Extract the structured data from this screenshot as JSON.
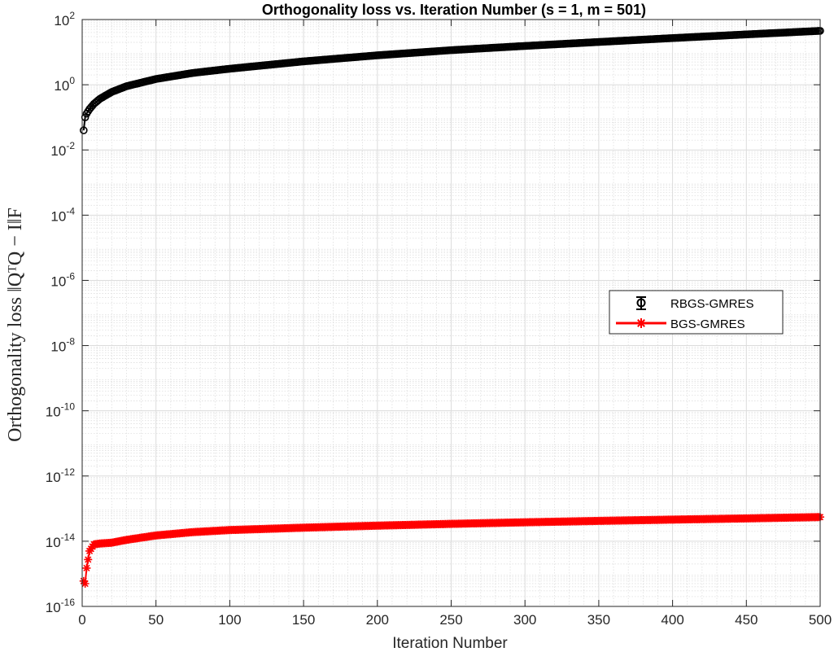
{
  "chart_data": {
    "type": "line",
    "title": "Orthogonality loss vs. Iteration Number (s = 1, m = 501)",
    "xlabel": "Iteration Number",
    "ylabel": "Orthogonality loss ‖QᵀQ − I‖F",
    "xlim": [
      0,
      500
    ],
    "ylim": [
      1e-16,
      100
    ],
    "yscale": "log",
    "grid": true,
    "minor_grid": true,
    "legend_position": "right",
    "x_ticks": [
      0,
      50,
      100,
      150,
      200,
      250,
      300,
      350,
      400,
      450,
      500
    ],
    "y_ticks": [
      {
        "base": "10",
        "exp": "2",
        "value": 100
      },
      {
        "base": "10",
        "exp": "0",
        "value": 1
      },
      {
        "base": "10",
        "exp": "-2",
        "value": 0.01
      },
      {
        "base": "10",
        "exp": "-4",
        "value": 0.0001
      },
      {
        "base": "10",
        "exp": "-6",
        "value": 1e-06
      },
      {
        "base": "10",
        "exp": "-8",
        "value": 1e-08
      },
      {
        "base": "10",
        "exp": "-10",
        "value": 1e-10
      },
      {
        "base": "10",
        "exp": "-12",
        "value": 1e-12
      },
      {
        "base": "10",
        "exp": "-14",
        "value": 1e-14
      },
      {
        "base": "10",
        "exp": "-16",
        "value": 1e-16
      }
    ],
    "series": [
      {
        "name": "RBGS-GMRES",
        "color": "#000000",
        "marker": "circle",
        "points": [
          [
            1,
            0.04
          ],
          [
            2,
            0.1
          ],
          [
            3,
            0.13
          ],
          [
            5,
            0.18
          ],
          [
            8,
            0.26
          ],
          [
            12,
            0.37
          ],
          [
            20,
            0.6
          ],
          [
            30,
            0.9
          ],
          [
            50,
            1.5
          ],
          [
            75,
            2.3
          ],
          [
            100,
            3.1
          ],
          [
            150,
            5.2
          ],
          [
            200,
            8.0
          ],
          [
            250,
            11.5
          ],
          [
            300,
            15.5
          ],
          [
            350,
            20.5
          ],
          [
            400,
            27.0
          ],
          [
            450,
            35.0
          ],
          [
            500,
            45.0
          ]
        ]
      },
      {
        "name": "BGS-GMRES",
        "color": "#ff0000",
        "marker": "asterisk",
        "points": [
          [
            1,
            6e-16
          ],
          [
            2,
            5e-16
          ],
          [
            3,
            1.5e-15
          ],
          [
            5,
            5e-15
          ],
          [
            8,
            8e-15
          ],
          [
            12,
            8.5e-15
          ],
          [
            20,
            9e-15
          ],
          [
            30,
            1.1e-14
          ],
          [
            50,
            1.5e-14
          ],
          [
            75,
            1.9e-14
          ],
          [
            100,
            2.2e-14
          ],
          [
            150,
            2.6e-14
          ],
          [
            200,
            3e-14
          ],
          [
            250,
            3.4e-14
          ],
          [
            300,
            3.8e-14
          ],
          [
            350,
            4.2e-14
          ],
          [
            400,
            4.6e-14
          ],
          [
            450,
            5e-14
          ],
          [
            500,
            5.5e-14
          ]
        ]
      }
    ]
  }
}
